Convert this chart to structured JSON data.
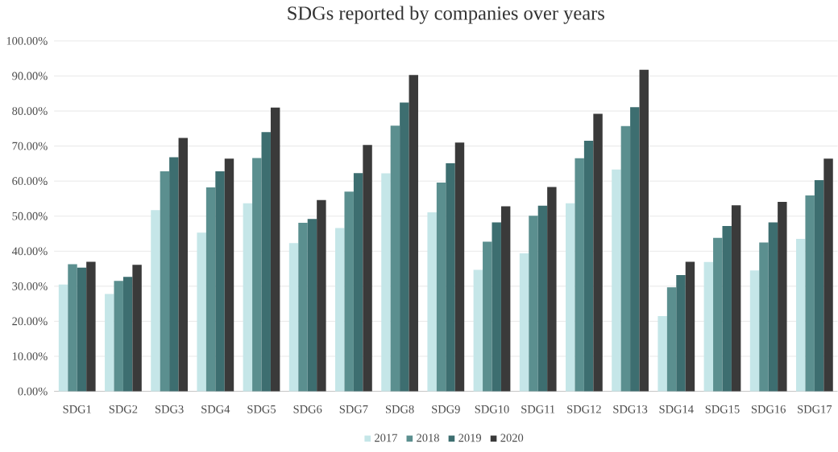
{
  "chart_data": {
    "type": "bar",
    "title": "SDGs reported by companies over years",
    "categories": [
      "SDG1",
      "SDG2",
      "SDG3",
      "SDG4",
      "SDG5",
      "SDG6",
      "SDG7",
      "SDG8",
      "SDG9",
      "SDG10",
      "SDG11",
      "SDG12",
      "SDG13",
      "SDG14",
      "SDG15",
      "SDG16",
      "SDG17"
    ],
    "series": [
      {
        "name": "2017",
        "color": "#c5e6e8",
        "values": [
          30.5,
          27.8,
          51.7,
          45.3,
          53.7,
          42.3,
          46.6,
          62.2,
          51.1,
          34.7,
          39.4,
          53.7,
          63.3,
          21.5,
          36.9,
          34.5,
          43.5
        ]
      },
      {
        "name": "2018",
        "color": "#5b8f8f",
        "values": [
          36.3,
          31.5,
          62.8,
          58.2,
          66.6,
          48.1,
          57.0,
          75.8,
          59.6,
          42.7,
          50.1,
          66.5,
          75.7,
          29.7,
          43.8,
          42.5,
          55.9
        ]
      },
      {
        "name": "2019",
        "color": "#3d6e70",
        "values": [
          35.3,
          32.7,
          66.8,
          62.8,
          74.0,
          49.2,
          62.3,
          82.4,
          65.1,
          48.2,
          53.0,
          71.5,
          81.1,
          33.2,
          47.2,
          48.2,
          60.3
        ]
      },
      {
        "name": "2020",
        "color": "#3a3a3a",
        "values": [
          37.0,
          36.1,
          72.3,
          66.4,
          81.0,
          54.6,
          70.3,
          90.3,
          71.0,
          52.8,
          58.3,
          79.2,
          91.8,
          37.0,
          53.1,
          54.1,
          66.4
        ]
      }
    ],
    "ylim": [
      0,
      100
    ],
    "yticks": [
      {
        "value": 0,
        "label": "0.00%"
      },
      {
        "value": 10,
        "label": "10.00%"
      },
      {
        "value": 20,
        "label": "20.00%"
      },
      {
        "value": 30,
        "label": "30.00%"
      },
      {
        "value": 40,
        "label": "40.00%"
      },
      {
        "value": 50,
        "label": "50.00%"
      },
      {
        "value": 60,
        "label": "60.00%"
      },
      {
        "value": 70,
        "label": "70.00%"
      },
      {
        "value": 80,
        "label": "80.00%"
      },
      {
        "value": 90,
        "label": "90.00%"
      },
      {
        "value": 100,
        "label": "100.00%"
      }
    ],
    "grid": "y",
    "legend": "bottom"
  }
}
